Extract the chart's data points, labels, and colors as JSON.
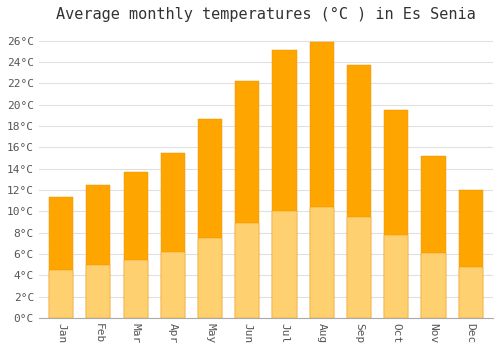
{
  "title": "Average monthly temperatures (°C ) in Es Senia",
  "months": [
    "Jan",
    "Feb",
    "Mar",
    "Apr",
    "May",
    "Jun",
    "Jul",
    "Aug",
    "Sep",
    "Oct",
    "Nov",
    "Dec"
  ],
  "temperatures": [
    11.3,
    12.5,
    13.7,
    15.5,
    18.7,
    22.2,
    25.1,
    25.9,
    23.7,
    19.5,
    15.2,
    12.0
  ],
  "bar_color_top": "#FFA500",
  "bar_color_bottom": "#FFD070",
  "bar_edge_color": "#E89000",
  "background_color": "#FFFFFF",
  "grid_color": "#e0e0e0",
  "ytick_step": 2,
  "ymin": 0,
  "ymax": 27,
  "title_fontsize": 11,
  "tick_fontsize": 8,
  "font_family": "monospace"
}
